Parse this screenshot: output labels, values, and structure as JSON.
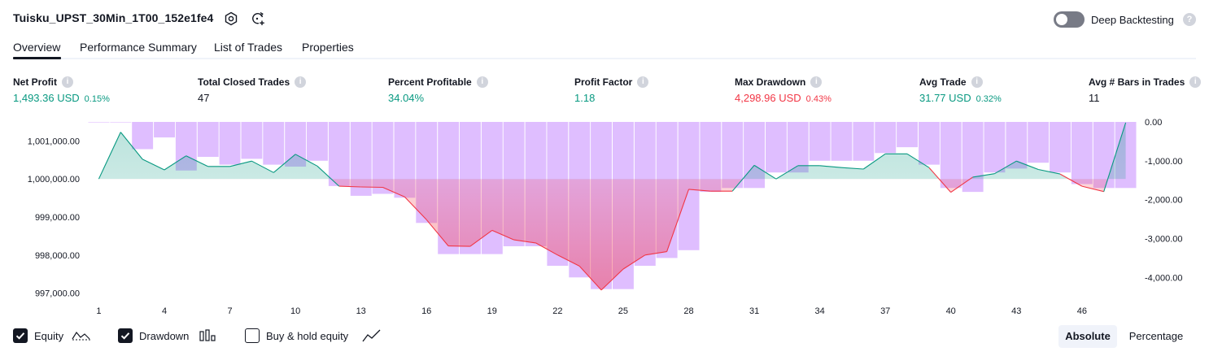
{
  "header": {
    "title": "Tuisku_UPST_30Min_1T00_152e1fe4",
    "deep_backtesting_label": "Deep Backtesting",
    "deep_backtesting_enabled": false,
    "help_glyph": "?"
  },
  "tabs": [
    {
      "label": "Overview",
      "active": true
    },
    {
      "label": "Performance Summary",
      "active": false
    },
    {
      "label": "List of Trades",
      "active": false
    },
    {
      "label": "Properties",
      "active": false
    }
  ],
  "metrics": [
    {
      "label": "Net Profit",
      "value": "1,493.36 USD",
      "pct": "0.15%",
      "color": "#089981"
    },
    {
      "label": "Total Closed Trades",
      "value": "47",
      "pct": "",
      "color": "#131722"
    },
    {
      "label": "Percent Profitable",
      "value": "34.04%",
      "pct": "",
      "color": "#089981"
    },
    {
      "label": "Profit Factor",
      "value": "1.18",
      "pct": "",
      "color": "#089981"
    },
    {
      "label": "Max Drawdown",
      "value": "4,298.96 USD",
      "pct": "0.43%",
      "color": "#f23645"
    },
    {
      "label": "Avg Trade",
      "value": "31.77 USD",
      "pct": "0.32%",
      "color": "#089981"
    },
    {
      "label": "Avg # Bars in Trades",
      "value": "11",
      "pct": "",
      "color": "#131722"
    }
  ],
  "chart_data": {
    "type": "line",
    "x": [
      1,
      2,
      3,
      4,
      5,
      6,
      7,
      8,
      9,
      10,
      11,
      12,
      13,
      14,
      15,
      16,
      17,
      18,
      19,
      20,
      21,
      22,
      23,
      24,
      25,
      26,
      27,
      28,
      29,
      30,
      31,
      32,
      33,
      34,
      35,
      36,
      37,
      38,
      39,
      40,
      41,
      42,
      43,
      44,
      45,
      46,
      47,
      48
    ],
    "x_ticks": [
      "1",
      "4",
      "7",
      "10",
      "13",
      "16",
      "19",
      "22",
      "25",
      "28",
      "31",
      "34",
      "37",
      "40",
      "43",
      "46"
    ],
    "left_axis": {
      "ticks": [
        "1,001,000.00",
        "1,000,000.00",
        "999,000.00",
        "998,000.00",
        "997,000.00"
      ],
      "ylim": [
        996800,
        1001500
      ]
    },
    "right_axis": {
      "ticks": [
        "0.00",
        "-1,000.00",
        "-2,000.00",
        "-3,000.00",
        "-4,000.00"
      ],
      "ylim": [
        -4600,
        0
      ]
    },
    "series": [
      {
        "name": "Equity",
        "axis": "left",
        "baseline": 1000000,
        "color_above": "#089981",
        "color_below": "#f23645",
        "values": [
          1000000,
          1001230,
          1000520,
          1000240,
          1000610,
          1000330,
          1000330,
          1000470,
          1000170,
          1000650,
          1000340,
          999810,
          999790,
          999780,
          999530,
          998930,
          998240,
          998230,
          998650,
          998400,
          998320,
          998000,
          997710,
          997080,
          997630,
          998000,
          998090,
          999730,
          999680,
          999680,
          1000360,
          1000000,
          1000350,
          1000350,
          1000300,
          1000260,
          1000660,
          1000660,
          1000300,
          999650,
          1000050,
          1000140,
          1000470,
          1000250,
          1000130,
          999810,
          999670,
          1001480
        ]
      },
      {
        "name": "Drawdown",
        "axis": "right",
        "values": [
          0,
          0,
          -700,
          -400,
          -1250,
          -900,
          -1100,
          -950,
          -1100,
          -1150,
          -1000,
          -1650,
          -1900,
          -1850,
          -1950,
          -2600,
          -3400,
          -3400,
          -3400,
          -3200,
          -3200,
          -3700,
          -4000,
          -4300,
          -4300,
          -3700,
          -3500,
          -3300,
          -1800,
          -1700,
          -1700,
          -1300,
          -1300,
          -1000,
          -1000,
          -1000,
          -800,
          -650,
          -1100,
          -1700,
          -1800,
          -1300,
          -1200,
          -1050,
          -1300,
          -1600,
          -1700,
          -1700
        ]
      }
    ],
    "drawdown_color": "#d9b3ff"
  },
  "legend": [
    {
      "label": "Equity",
      "checked": true
    },
    {
      "label": "Drawdown",
      "checked": true
    },
    {
      "label": "Buy & hold equity",
      "checked": false
    }
  ],
  "view_toggle": {
    "absolute_label": "Absolute",
    "percentage_label": "Percentage",
    "selected": "Absolute"
  }
}
